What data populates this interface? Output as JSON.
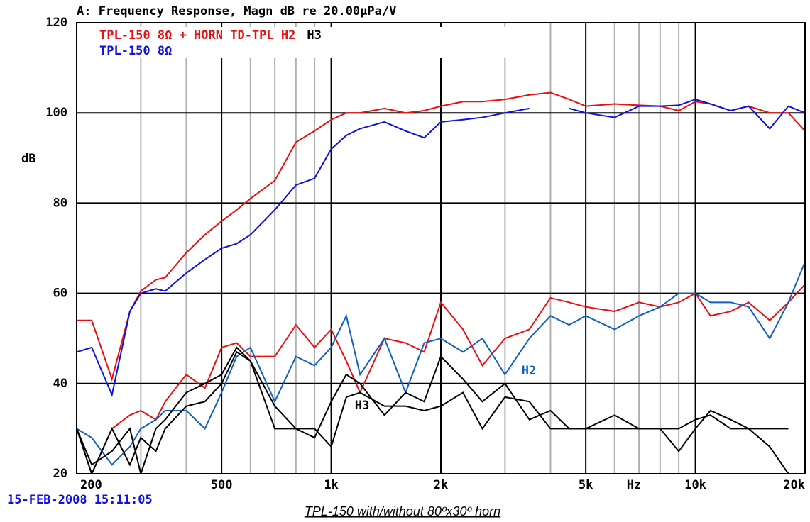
{
  "chart_data": {
    "type": "line",
    "title": "A: Frequency Response, Magn dB re 20.00µPa/V",
    "ylabel": "dB",
    "xunit": "Hz",
    "timestamp": "15-FEB-2008 15:11:05",
    "caption": "TPL-150 with/without 80ºx30º horn",
    "legend_lines": [
      [
        {
          "text": "TPL-150  8Ω  +  HORN  TD-TPL  H2",
          "color": "#e81010"
        },
        {
          "text": "H3",
          "color": "#000000"
        }
      ],
      [
        {
          "text": "TPL-150  8Ω",
          "color": "#1010e0"
        }
      ]
    ],
    "annotations": [
      {
        "text": "H2",
        "color": "#1060c0"
      },
      {
        "text": "H3",
        "color": "#000000"
      }
    ],
    "log_x": true,
    "xlim": [
      200,
      20000
    ],
    "ylim": [
      20,
      120
    ],
    "xticks": [
      200,
      500,
      {
        "value": 1000,
        "label": "1k"
      },
      {
        "value": 2000,
        "label": "2k"
      },
      {
        "value": 5000,
        "label": "5k"
      },
      {
        "value": 10000,
        "label": "10k"
      },
      {
        "value": 20000,
        "label": "20k"
      }
    ],
    "xminor": [
      300,
      400,
      600,
      700,
      800,
      900,
      3000,
      4000,
      6000,
      7000,
      8000,
      9000
    ],
    "yticks": [
      20,
      40,
      60,
      80,
      100,
      120
    ],
    "grid": true,
    "x": [
      200,
      220,
      250,
      280,
      300,
      330,
      350,
      400,
      450,
      500,
      550,
      600,
      700,
      800,
      900,
      1000,
      1100,
      1200,
      1400,
      1600,
      1800,
      2000,
      2300,
      2600,
      3000,
      3500,
      4000,
      4500,
      5000,
      6000,
      7000,
      8000,
      9000,
      10000,
      11000,
      12500,
      14000,
      16000,
      18000,
      20000
    ],
    "series": [
      {
        "color": "#e81010",
        "values": [
          54,
          54,
          41,
          56,
          60.5,
          63,
          63.5,
          69,
          73,
          76,
          78.5,
          81,
          85,
          93.5,
          96,
          98.5,
          100,
          100,
          101,
          100,
          100.5,
          101.5,
          102.5,
          102.5,
          103,
          104,
          104.5,
          103,
          101.5,
          102,
          101.7,
          101.5,
          100.5,
          102.5,
          102,
          100.5,
          101.5,
          100,
          100,
          96
        ]
      },
      {
        "color": "#1010e0",
        "values": [
          47,
          48,
          37.5,
          56,
          60,
          61,
          60.5,
          64.5,
          67.5,
          70,
          71,
          73,
          78.5,
          84,
          85.5,
          92,
          95,
          96.5,
          98,
          96,
          94.5,
          98,
          98.5,
          99,
          100,
          101,
          null,
          101,
          100,
          99,
          101.5,
          101.5,
          101.7,
          103,
          102,
          100.5,
          101.5,
          96.5,
          101.5,
          100
        ]
      },
      {
        "color": "#e81010",
        "values": [
          30,
          20,
          30,
          33,
          34,
          32,
          36,
          42,
          39,
          48,
          49,
          46,
          46,
          53,
          48,
          52,
          45,
          38,
          50,
          49,
          47,
          58,
          52,
          44,
          50,
          52,
          59,
          58,
          57,
          56,
          58,
          57,
          58,
          60,
          55,
          56,
          58,
          54,
          58,
          62
        ]
      },
      {
        "color": "#1060c0",
        "values": [
          30,
          28,
          22,
          26,
          30,
          32,
          34,
          34,
          30,
          38,
          46,
          48,
          36,
          46,
          44,
          48,
          55,
          42,
          50,
          38,
          49,
          50,
          47,
          50,
          42,
          50,
          55,
          53,
          55,
          52,
          55,
          57,
          60,
          60,
          58,
          58,
          57,
          50,
          58,
          67
        ]
      },
      {
        "color": "#000000",
        "values": [
          30,
          22,
          25,
          30,
          20,
          30,
          32,
          38,
          40,
          42,
          48,
          45,
          35,
          30,
          28,
          36,
          42,
          40,
          33,
          38,
          36,
          46,
          41,
          36,
          40,
          32,
          34,
          30,
          30,
          33,
          30,
          30,
          25,
          30,
          34,
          32,
          30,
          26,
          20,
          null
        ]
      },
      {
        "color": "#000000",
        "values": [
          30,
          20,
          30,
          22,
          28,
          25,
          30,
          35,
          36,
          40,
          47,
          45,
          30,
          30,
          30,
          26,
          37,
          38,
          35,
          35,
          34,
          35,
          38,
          30,
          37,
          36,
          30,
          30,
          30,
          30,
          30,
          30,
          30,
          32,
          33,
          30,
          30,
          30,
          30,
          null
        ]
      }
    ]
  }
}
